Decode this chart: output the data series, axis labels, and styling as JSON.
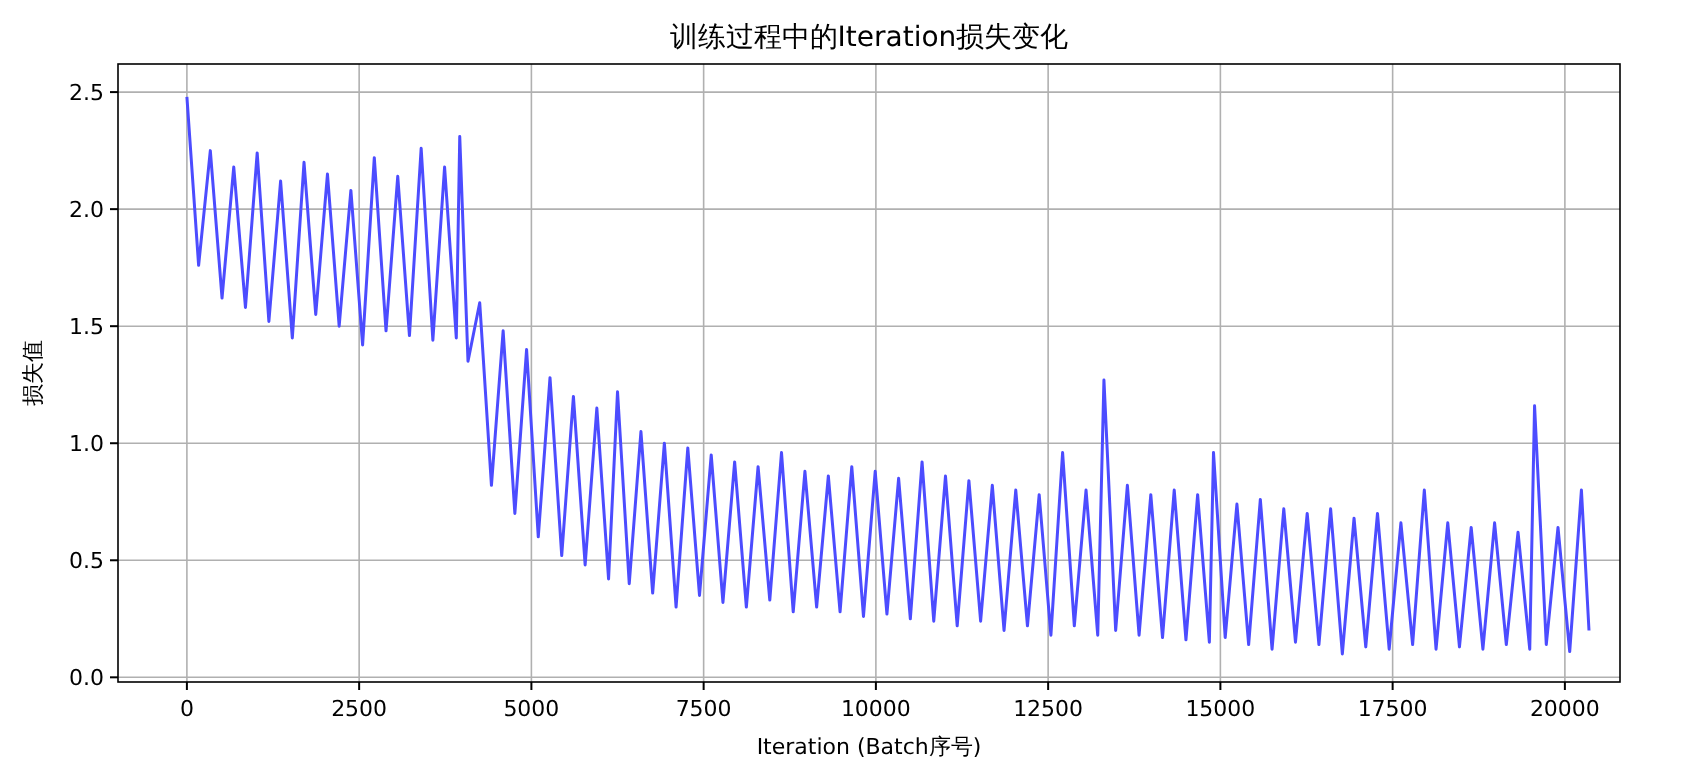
{
  "chart_data": {
    "type": "line",
    "title": "训练过程中的Iteration损失变化",
    "xlabel": "Iteration (Batch序号)",
    "ylabel": "损失值",
    "grid": true,
    "line_style": "solid",
    "xlim": [
      -1000,
      20800
    ],
    "xticks": [
      0,
      2500,
      5000,
      7500,
      10000,
      12500,
      15000,
      17500,
      20000
    ],
    "ylim": [
      -0.02,
      2.62
    ],
    "yticks": [
      {
        "value": 0,
        "label": "0.0"
      },
      {
        "value": 0.5,
        "label": "0.5"
      },
      {
        "value": 1,
        "label": "1.0"
      },
      {
        "value": 1.5,
        "label": "1.5"
      },
      {
        "value": 2,
        "label": "2.0"
      },
      {
        "value": 2.5,
        "label": "2.5"
      }
    ],
    "series": [
      {
        "color": "#4c4cff",
        "x": [
          0,
          170,
          340,
          510,
          680,
          850,
          1020,
          1190,
          1360,
          1530,
          1700,
          1870,
          2040,
          2210,
          2380,
          2550,
          2720,
          2890,
          3060,
          3230,
          3400,
          3570,
          3740,
          3910,
          3960,
          4080,
          4250,
          4420,
          4590,
          4760,
          4930,
          5100,
          5270,
          5440,
          5610,
          5780,
          5950,
          6120,
          6250,
          6420,
          6590,
          6760,
          6930,
          7100,
          7270,
          7440,
          7610,
          7780,
          7950,
          8120,
          8290,
          8460,
          8630,
          8800,
          8970,
          9140,
          9310,
          9480,
          9650,
          9820,
          9990,
          10160,
          10330,
          10500,
          10670,
          10840,
          11010,
          11180,
          11350,
          11520,
          11690,
          11860,
          12030,
          12200,
          12370,
          12540,
          12710,
          12880,
          13050,
          13220,
          13310,
          13480,
          13650,
          13820,
          13990,
          14160,
          14330,
          14500,
          14670,
          14840,
          14900,
          15070,
          15240,
          15410,
          15580,
          15750,
          15920,
          16090,
          16260,
          16430,
          16600,
          16770,
          16940,
          17110,
          17280,
          17450,
          17620,
          17790,
          17960,
          18130,
          18300,
          18470,
          18640,
          18810,
          18980,
          19150,
          19320,
          19490,
          19560,
          19730,
          19900,
          20070,
          20240,
          20350
        ],
        "values": [
          2.48,
          1.76,
          2.25,
          1.62,
          2.18,
          1.58,
          2.24,
          1.52,
          2.12,
          1.45,
          2.2,
          1.55,
          2.15,
          1.5,
          2.08,
          1.42,
          2.22,
          1.48,
          2.14,
          1.46,
          2.26,
          1.44,
          2.18,
          1.45,
          2.31,
          1.35,
          1.6,
          0.82,
          1.48,
          0.7,
          1.4,
          0.6,
          1.28,
          0.52,
          1.2,
          0.48,
          1.15,
          0.42,
          1.22,
          0.4,
          1.05,
          0.36,
          1.0,
          0.3,
          0.98,
          0.35,
          0.95,
          0.32,
          0.92,
          0.3,
          0.9,
          0.33,
          0.96,
          0.28,
          0.88,
          0.3,
          0.86,
          0.28,
          0.9,
          0.26,
          0.88,
          0.27,
          0.85,
          0.25,
          0.92,
          0.24,
          0.86,
          0.22,
          0.84,
          0.24,
          0.82,
          0.2,
          0.8,
          0.22,
          0.78,
          0.18,
          0.96,
          0.22,
          0.8,
          0.18,
          1.27,
          0.2,
          0.82,
          0.18,
          0.78,
          0.17,
          0.8,
          0.16,
          0.78,
          0.15,
          0.96,
          0.17,
          0.74,
          0.14,
          0.76,
          0.12,
          0.72,
          0.15,
          0.7,
          0.14,
          0.72,
          0.1,
          0.68,
          0.13,
          0.7,
          0.12,
          0.66,
          0.14,
          0.8,
          0.12,
          0.66,
          0.13,
          0.64,
          0.12,
          0.66,
          0.14,
          0.62,
          0.12,
          1.16,
          0.14,
          0.64,
          0.11,
          0.8,
          0.2
        ]
      }
    ]
  }
}
